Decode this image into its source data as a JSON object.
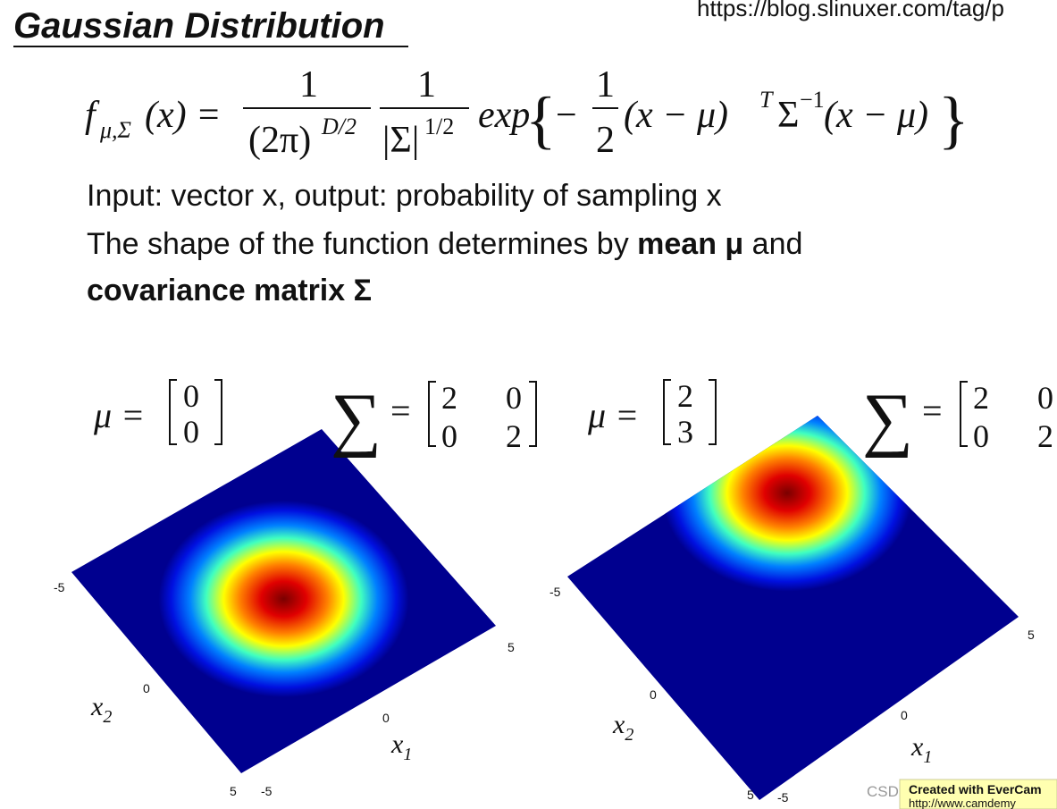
{
  "title": "Gaussian Distribution",
  "url": "https://blog.slinuxer.com/tag/p",
  "formula": {
    "f": "f",
    "f_sub": "μ,Σ",
    "f_arg": "(x) =",
    "num1": "1",
    "den1": "(2π)",
    "den1_sup": "D/2",
    "num2": "1",
    "den2": "|Σ|",
    "den2_sup": "1/2",
    "exp": "exp",
    "open": "{",
    "minus": "−",
    "half_num": "1",
    "half_den": "2",
    "diff1": "(x − μ)",
    "t": "T",
    "sigma": "Σ",
    "inv": "−1",
    "diff2": "(x − μ)",
    "close": "}"
  },
  "lines": [
    {
      "text": "Input: vector x, output: probability of sampling x"
    },
    {
      "text": "The shape of the function determines by ",
      "bold": "mean μ",
      "after": " and"
    },
    {
      "bold": "covariance matrix Σ"
    }
  ],
  "plots": [
    {
      "mu_label": "μ =",
      "mu": [
        0,
        0
      ],
      "sigma_label": "∑ =",
      "sigma": [
        [
          2,
          0
        ],
        [
          0,
          2
        ]
      ],
      "x1_label": "x1",
      "x2_label": "x2",
      "x1_ticks": [
        -5,
        0,
        5
      ],
      "x2_ticks": [
        -5,
        0,
        5
      ]
    },
    {
      "mu_label": "μ =",
      "mu": [
        2,
        3
      ],
      "sigma_label": "∑ =",
      "sigma": [
        [
          2,
          0
        ],
        [
          0,
          2
        ]
      ],
      "x1_label": "x1",
      "x2_label": "x2",
      "x1_ticks": [
        -5,
        0,
        5
      ],
      "x2_ticks": [
        -5,
        0,
        5
      ]
    }
  ],
  "watermark": {
    "csdn": "CSDN @Andy with Bugs",
    "evercam": "Created with EverCam",
    "site": "http://www.camdemy"
  }
}
